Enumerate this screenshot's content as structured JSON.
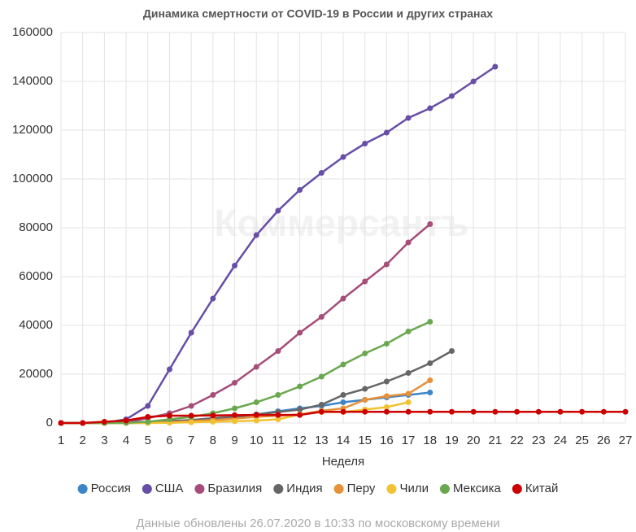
{
  "chart_data": {
    "type": "line",
    "title": "Динамика смертности от COVID-19 в России и других странах",
    "watermark": "Коммерсантъ",
    "x_label": "Неделя",
    "footer": "Данные обновлены 26.07.2020 в 10:33 по московскому времени",
    "x": [
      1,
      2,
      3,
      4,
      5,
      6,
      7,
      8,
      9,
      10,
      11,
      12,
      13,
      14,
      15,
      16,
      17,
      18,
      19,
      20,
      21,
      22,
      23,
      24,
      25,
      26,
      27
    ],
    "xlim": [
      1,
      27
    ],
    "xticks": [
      1,
      2,
      3,
      4,
      5,
      6,
      7,
      8,
      9,
      10,
      11,
      12,
      13,
      14,
      15,
      16,
      17,
      18,
      19,
      20,
      21,
      22,
      23,
      24,
      25,
      26,
      27
    ],
    "ylim": [
      0,
      160000
    ],
    "yticks": [
      0,
      20000,
      40000,
      60000,
      80000,
      100000,
      120000,
      140000,
      160000
    ],
    "grid": true,
    "legend": "bottom",
    "series": [
      {
        "name": "Россия",
        "color": "#3d85c6",
        "values": [
          0,
          0,
          0,
          0,
          100,
          300,
          800,
          1500,
          2500,
          3500,
          4800,
          6000,
          7000,
          8500,
          9500,
          10500,
          11500,
          12500,
          null,
          null,
          null,
          null,
          null,
          null,
          null,
          null,
          null
        ]
      },
      {
        "name": "США",
        "color": "#674ea7",
        "values": [
          0,
          0,
          100,
          1500,
          7000,
          22000,
          37000,
          51000,
          64500,
          77000,
          87000,
          95500,
          102500,
          109000,
          114500,
          119000,
          125000,
          129000,
          134000,
          140000,
          146000,
          null,
          null,
          null,
          null,
          null,
          null
        ]
      },
      {
        "name": "Бразилия",
        "color": "#a64d79",
        "values": [
          0,
          0,
          0,
          100,
          2000,
          4000,
          7000,
          11500,
          16500,
          23000,
          29500,
          37000,
          43500,
          51000,
          58000,
          65000,
          74000,
          81500,
          null,
          null,
          null,
          null,
          null,
          null,
          null,
          null,
          null
        ]
      },
      {
        "name": "Индия",
        "color": "#666666",
        "values": [
          0,
          0,
          0,
          100,
          300,
          800,
          1200,
          2000,
          2500,
          3500,
          4500,
          5500,
          7500,
          11500,
          14000,
          17000,
          20500,
          24500,
          29500,
          null,
          null,
          null,
          null,
          null,
          null,
          null,
          null
        ]
      },
      {
        "name": "Перу",
        "color": "#e69138",
        "values": [
          0,
          0,
          0,
          0,
          100,
          300,
          800,
          1200,
          1800,
          2500,
          3000,
          3500,
          5000,
          6000,
          9500,
          11000,
          12000,
          17500,
          null,
          null,
          null,
          null,
          null,
          null,
          null,
          null,
          null
        ]
      },
      {
        "name": "Чили",
        "color": "#f1c232",
        "values": [
          0,
          0,
          0,
          0,
          0,
          100,
          300,
          500,
          700,
          1000,
          1500,
          3500,
          4500,
          4500,
          5500,
          6500,
          8500,
          null,
          null,
          null,
          null,
          null,
          null,
          null,
          null,
          null,
          null
        ]
      },
      {
        "name": "Мексика",
        "color": "#6aa84f",
        "values": [
          0,
          0,
          0,
          100,
          500,
          1500,
          2500,
          4000,
          6000,
          8500,
          11500,
          15000,
          19000,
          24000,
          28500,
          32500,
          37500,
          41500,
          null,
          null,
          null,
          null,
          null,
          null,
          null,
          null,
          null
        ]
      },
      {
        "name": "Китай",
        "color": "#cc0000",
        "values": [
          0,
          0,
          500,
          1000,
          2500,
          3000,
          3000,
          3100,
          3200,
          3300,
          3300,
          3300,
          4600,
          4600,
          4600,
          4600,
          4600,
          4600,
          4600,
          4600,
          4600,
          4600,
          4600,
          4600,
          4600,
          4600,
          4600
        ]
      }
    ]
  }
}
